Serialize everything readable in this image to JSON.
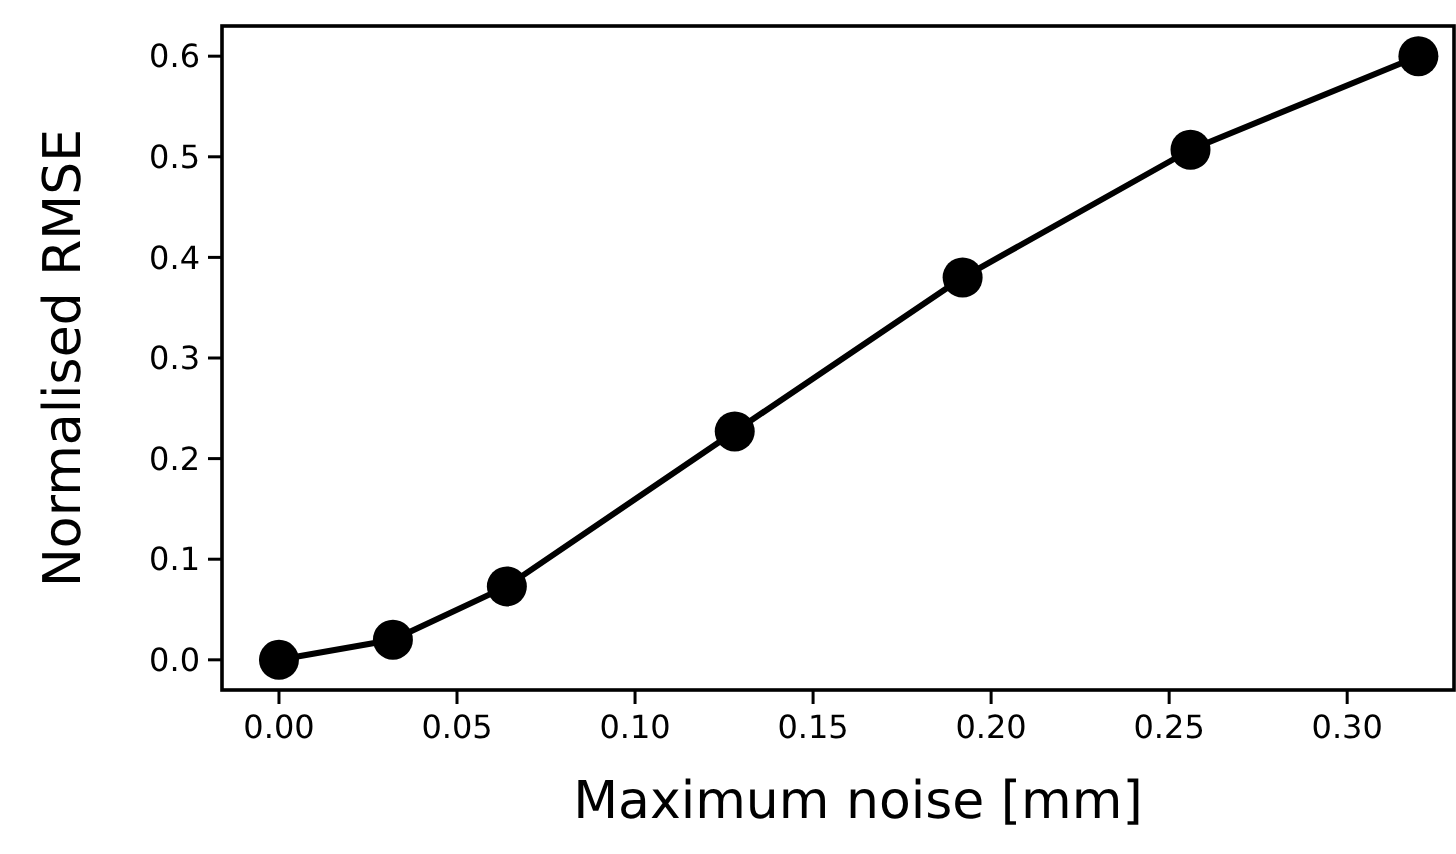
{
  "chart_data": {
    "type": "line",
    "xlabel": "Maximum noise [mm]",
    "ylabel": "Normalised RMSE",
    "x": [
      0,
      0.032,
      0.064,
      0.128,
      0.192,
      0.256,
      0.32
    ],
    "series": [
      {
        "color": "#000000",
        "values": [
          0,
          0.02,
          0.073,
          0.227,
          0.38,
          0.507,
          0.6
        ]
      }
    ],
    "xlim": [
      -0.016,
      0.33
    ],
    "ylim": [
      -0.03,
      0.63
    ],
    "xticks": [
      {
        "value": 0,
        "label": "0.00"
      },
      {
        "value": 0.05,
        "label": "0.05"
      },
      {
        "value": 0.1,
        "label": "0.10"
      },
      {
        "value": 0.15,
        "label": "0.15"
      },
      {
        "value": 0.2,
        "label": "0.20"
      },
      {
        "value": 0.25,
        "label": "0.25"
      },
      {
        "value": 0.3,
        "label": "0.30"
      }
    ],
    "yticks": [
      {
        "value": 0,
        "label": "0.0"
      },
      {
        "value": 0.1,
        "label": "0.1"
      },
      {
        "value": 0.2,
        "label": "0.2"
      },
      {
        "value": 0.3,
        "label": "0.3"
      },
      {
        "value": 0.4,
        "label": "0.4"
      },
      {
        "value": 0.5,
        "label": "0.5"
      },
      {
        "value": 0.6,
        "label": "0.6"
      }
    ],
    "marker": "circle",
    "line_style": "solid",
    "grid": false
  }
}
